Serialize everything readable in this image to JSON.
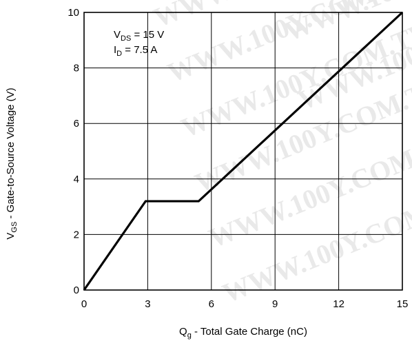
{
  "chart_data": {
    "type": "line",
    "title": "",
    "xlabel": {
      "main": "Q",
      "sub": "g",
      "rest": " -  Total Gate Charge (nC)"
    },
    "ylabel": {
      "main": "V",
      "sub": "GS",
      "rest": " - Gate-to-Source Voltage (V)"
    },
    "xlim": [
      0,
      15
    ],
    "ylim": [
      0,
      10
    ],
    "x_ticks": [
      0,
      3,
      6,
      9,
      12,
      15
    ],
    "y_ticks": [
      0,
      2,
      4,
      6,
      8,
      10
    ],
    "grid": true,
    "series": [
      {
        "x": [
          0,
          2.9,
          5.4,
          15
        ],
        "y": [
          0,
          3.2,
          3.2,
          10
        ]
      }
    ],
    "annotations": [
      {
        "main": "V",
        "sub": "DS",
        "rest": " = 15 V"
      },
      {
        "main": "I",
        "sub": "D",
        "rest": " = 7.5 A"
      }
    ]
  },
  "watermark": "WWW.100Y.COM.TW"
}
